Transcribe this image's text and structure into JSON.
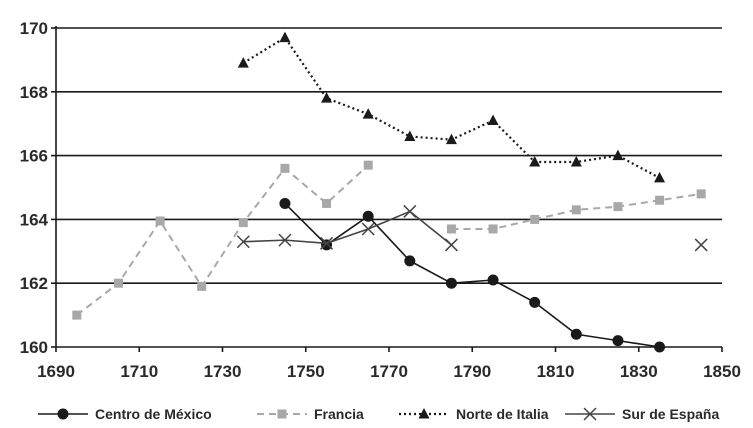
{
  "chart_data": {
    "type": "line",
    "title": "",
    "xlabel": "",
    "ylabel": "",
    "xlim": [
      1690,
      1850
    ],
    "ylim": [
      160,
      170
    ],
    "x_ticks": [
      1690,
      1710,
      1730,
      1750,
      1770,
      1790,
      1810,
      1830,
      1850
    ],
    "y_ticks": [
      160,
      162,
      164,
      166,
      168,
      170
    ],
    "grid": "horizontal",
    "legend_position": "bottom",
    "series": [
      {
        "name": "Centro de México",
        "color": "#1a1a1a",
        "line": "solid",
        "marker": "circle",
        "points": [
          [
            1745,
            164.5
          ],
          [
            1755,
            163.2
          ],
          [
            1765,
            164.1
          ],
          [
            1775,
            162.7
          ],
          [
            1785,
            162.0
          ],
          [
            1795,
            162.1
          ],
          [
            1805,
            161.4
          ],
          [
            1815,
            160.4
          ],
          [
            1825,
            160.2
          ],
          [
            1835,
            160.0
          ]
        ]
      },
      {
        "name": "Francia",
        "color": "#a8a8a8",
        "line": "dashed",
        "marker": "square",
        "points": [
          [
            1695,
            161.0
          ],
          [
            1705,
            162.0
          ],
          [
            1715,
            163.95
          ],
          [
            1725,
            161.9
          ],
          [
            1735,
            163.9
          ],
          [
            1745,
            165.6
          ],
          [
            1755,
            164.5
          ],
          [
            1765,
            165.7
          ],
          [
            null,
            null
          ],
          [
            1785,
            163.7
          ],
          [
            1795,
            163.7
          ],
          [
            1805,
            164.0
          ],
          [
            1815,
            164.3
          ],
          [
            1825,
            164.4
          ],
          [
            1835,
            164.6
          ],
          [
            1845,
            164.8
          ]
        ]
      },
      {
        "name": "Norte de Italia",
        "color": "#1a1a1a",
        "line": "dotted",
        "marker": "triangle",
        "points": [
          [
            1735,
            168.9
          ],
          [
            1745,
            169.7
          ],
          [
            1755,
            167.8
          ],
          [
            1765,
            167.3
          ],
          [
            1775,
            166.6
          ],
          [
            1785,
            166.5
          ],
          [
            1795,
            167.1
          ],
          [
            1805,
            165.8
          ],
          [
            1815,
            165.8
          ],
          [
            1825,
            166.0
          ],
          [
            1835,
            165.3
          ]
        ]
      },
      {
        "name": "Sur de España",
        "color": "#444444",
        "line": "solid",
        "marker": "x",
        "points": [
          [
            1735,
            163.3
          ],
          [
            1745,
            163.35
          ],
          [
            1755,
            163.25
          ],
          [
            1765,
            163.7
          ],
          [
            1775,
            164.25
          ],
          [
            1785,
            163.2
          ],
          [
            null,
            null
          ],
          [
            1845,
            163.2
          ]
        ]
      }
    ]
  }
}
